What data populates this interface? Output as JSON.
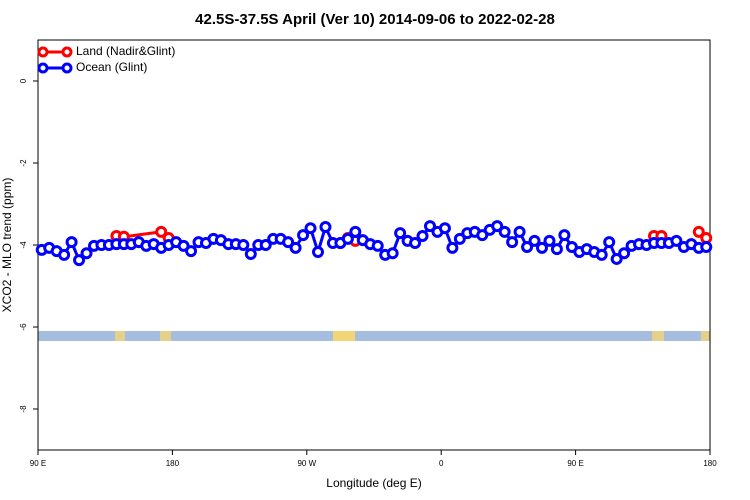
{
  "chart_data": {
    "type": "line",
    "title": "42.5S-37.5S April (Ver 10)   2014-09-06 to 2022-02-28",
    "x_label": "Longitude (deg E)",
    "y_label": "XCO2 - MLO trend (ppm)",
    "xlim": [
      90,
      540
    ],
    "xticks": [
      {
        "value": 90,
        "label": "90 E"
      },
      {
        "value": 180,
        "label": "180"
      },
      {
        "value": 270,
        "label": "90 W"
      },
      {
        "value": 360,
        "label": "0"
      },
      {
        "value": 450,
        "label": "90 E"
      },
      {
        "value": 540,
        "label": "180"
      }
    ],
    "ylim": [
      -9,
      1
    ],
    "yticks": [
      0,
      -2,
      -4,
      -6,
      -8
    ],
    "legend": "top-left",
    "series": [
      {
        "name": "Land (Nadir&Glint)",
        "color": "#ff0000",
        "x": [
          142.5,
          147.5,
          172.5,
          177.5,
          232.5,
          292.5,
          297.5,
          302.5,
          402.5,
          502.5,
          507.5,
          522.5,
          532.5,
          537.5
        ],
        "values": [
          -3.78,
          -3.8,
          -3.68,
          -3.83,
          null,
          -3.95,
          -3.83,
          -3.9,
          null,
          -3.78,
          -3.78,
          null,
          -3.68,
          -3.83
        ]
      },
      {
        "name": "Ocean (Glint)",
        "color": "#0000ff",
        "x": [
          92.5,
          97.5,
          102.5,
          107.5,
          112.5,
          117.5,
          122.5,
          127.5,
          132.5,
          137.5,
          142.5,
          147.5,
          152.5,
          157.5,
          162.5,
          167.5,
          172.5,
          177.5,
          182.5,
          187.5,
          192.5,
          197.5,
          202.5,
          207.5,
          212.5,
          217.5,
          222.5,
          227.5,
          232.5,
          237.5,
          242.5,
          247.5,
          252.5,
          257.5,
          262.5,
          267.5,
          272.5,
          277.5,
          282.5,
          287.5,
          292.5,
          297.5,
          302.5,
          307.5,
          312.5,
          317.5,
          322.5,
          327.5,
          332.5,
          337.5,
          342.5,
          347.5,
          352.5,
          357.5,
          362.5,
          367.5,
          372.5,
          377.5,
          382.5,
          387.5,
          392.5,
          397.5,
          402.5,
          407.5,
          412.5,
          417.5,
          422.5,
          427.5,
          432.5,
          437.5,
          442.5,
          447.5,
          452.5,
          457.5,
          462.5,
          467.5,
          472.5,
          477.5,
          482.5,
          487.5,
          492.5,
          497.5,
          502.5,
          507.5,
          512.5,
          517.5,
          522.5,
          527.5,
          532.5,
          537.5
        ],
        "values": [
          -4.12,
          -4.07,
          -4.15,
          -4.24,
          -3.93,
          -4.37,
          -4.2,
          -4.02,
          -4.0,
          -4.0,
          -3.98,
          -3.98,
          -3.98,
          -3.93,
          -4.02,
          -3.98,
          -4.07,
          -4.0,
          -3.93,
          -4.02,
          -4.15,
          -3.93,
          -3.95,
          -3.85,
          -3.88,
          -3.98,
          -3.98,
          -4.0,
          -4.22,
          -4.0,
          -4.0,
          -3.85,
          -3.85,
          -3.93,
          -4.07,
          -3.76,
          -3.59,
          -4.17,
          -3.56,
          -3.95,
          -3.95,
          -3.85,
          -3.68,
          -3.88,
          -3.98,
          -4.02,
          -4.24,
          -4.2,
          -3.71,
          -3.9,
          -3.95,
          -3.78,
          -3.54,
          -3.68,
          -3.59,
          -4.07,
          -3.85,
          -3.71,
          -3.68,
          -3.76,
          -3.63,
          -3.54,
          -3.68,
          -3.93,
          -3.68,
          -4.05,
          -3.9,
          -4.07,
          -3.9,
          -4.1,
          -3.76,
          -4.05,
          -4.17,
          -4.1,
          -4.17,
          -4.24,
          -3.93,
          -4.34,
          -4.2,
          -4.02,
          -3.98,
          -4.0,
          -3.95,
          -3.95,
          -3.95,
          -3.9,
          -4.05,
          -3.98,
          -4.07,
          -4.05
        ]
      }
    ]
  }
}
